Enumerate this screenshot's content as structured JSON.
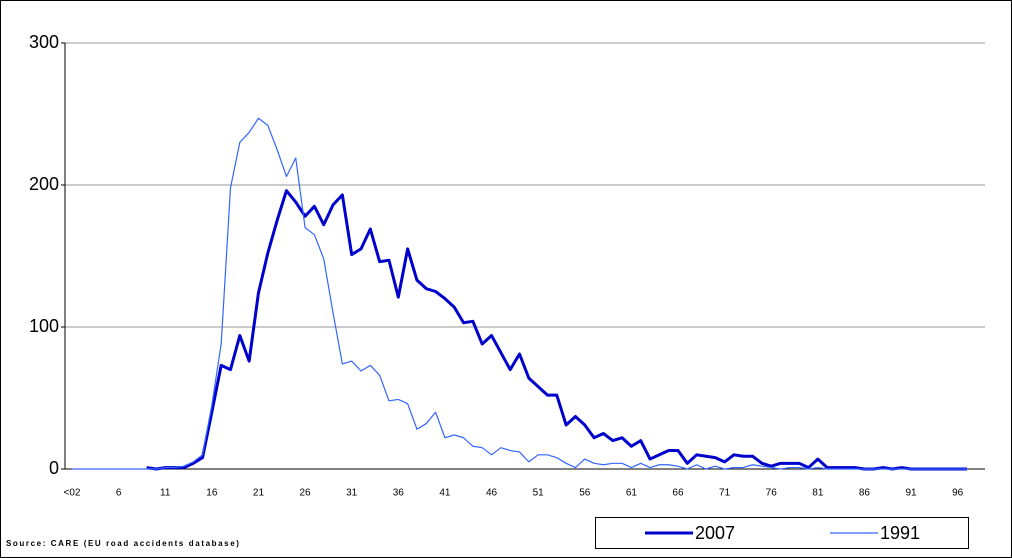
{
  "chart_data": {
    "type": "line",
    "source": "Source: CARE (EU road accidents database)",
    "categories": [
      "<02",
      null,
      null,
      null,
      null,
      "6",
      null,
      null,
      null,
      null,
      "11",
      null,
      null,
      null,
      null,
      "16",
      null,
      null,
      null,
      null,
      "21",
      null,
      null,
      null,
      null,
      "26",
      null,
      null,
      null,
      null,
      "31",
      null,
      null,
      null,
      null,
      "36",
      null,
      null,
      null,
      null,
      "41",
      null,
      null,
      null,
      null,
      "46",
      null,
      null,
      null,
      null,
      "51",
      null,
      null,
      null,
      null,
      "56",
      null,
      null,
      null,
      null,
      "61",
      null,
      null,
      null,
      null,
      "66",
      null,
      null,
      null,
      null,
      "71",
      null,
      null,
      null,
      null,
      "76",
      null,
      null,
      null,
      null,
      "81",
      null,
      null,
      null,
      null,
      "86",
      null,
      null,
      null,
      null,
      "91",
      null,
      null,
      null,
      null,
      "96",
      null
    ],
    "series": [
      {
        "name": "2007",
        "color": "#0000cc",
        "values": [
          null,
          null,
          null,
          null,
          null,
          null,
          null,
          null,
          1,
          0,
          1,
          1,
          1,
          4,
          8,
          40,
          73,
          70,
          94,
          76,
          124,
          152,
          175,
          196,
          188,
          178,
          185,
          172,
          186,
          193,
          151,
          155,
          169,
          146,
          147,
          121,
          155,
          133,
          127,
          125,
          120,
          114,
          103,
          104,
          88,
          94,
          82,
          70,
          81,
          64,
          58,
          52,
          52,
          31,
          37,
          31,
          22,
          25,
          20,
          22,
          16,
          20,
          7,
          10,
          13,
          13,
          4,
          10,
          9,
          8,
          5,
          10,
          9,
          9,
          4,
          2,
          4,
          4,
          4,
          1,
          7,
          1,
          1,
          1,
          1,
          0,
          0,
          1,
          0,
          1,
          0,
          0,
          0,
          0,
          0,
          0,
          0
        ]
      },
      {
        "name": "1991",
        "color": "#3366ff",
        "values": [
          0,
          0,
          0,
          0,
          0,
          0,
          0,
          0,
          0,
          0,
          1,
          1,
          2,
          5,
          10,
          45,
          88,
          198,
          230,
          237,
          247,
          242,
          225,
          206,
          219,
          170,
          165,
          148,
          110,
          74,
          76,
          69,
          73,
          66,
          48,
          49,
          46,
          28,
          32,
          40,
          22,
          24,
          22,
          16,
          15,
          10,
          15,
          13,
          12,
          5,
          10,
          10,
          8,
          4,
          1,
          7,
          4,
          3,
          4,
          4,
          1,
          4,
          1,
          3,
          3,
          2,
          0,
          3,
          0,
          2,
          0,
          1,
          1,
          3,
          2,
          1,
          0,
          1,
          1,
          0,
          1,
          0,
          0,
          0,
          0,
          0,
          0,
          0,
          0,
          0,
          0,
          0,
          0,
          0,
          0,
          0,
          0
        ]
      }
    ],
    "ylim": [
      0,
      300
    ],
    "yticks": [
      0,
      100,
      200,
      300
    ],
    "grid": true
  }
}
